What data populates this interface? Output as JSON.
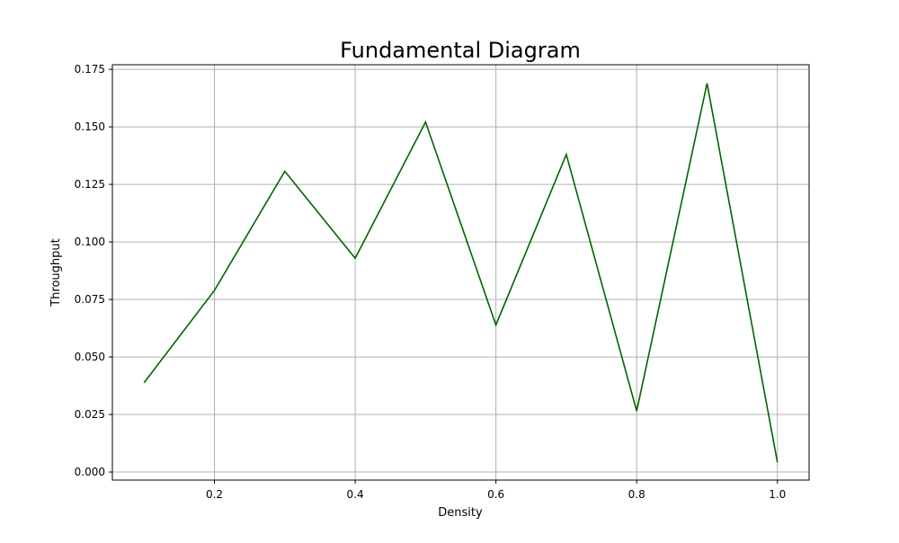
{
  "chart_data": {
    "type": "line",
    "title": "Fundamental Diagram",
    "xlabel": "Density",
    "ylabel": "Throughput",
    "x": [
      0.1,
      0.2,
      0.3,
      0.4,
      0.5,
      0.6,
      0.7,
      0.8,
      0.9,
      1.0
    ],
    "series": [
      {
        "values": [
          0.0388,
          0.0789,
          0.1307,
          0.0929,
          0.1521,
          0.0639,
          0.138,
          0.0265,
          0.1689,
          0.0042
        ],
        "color": "#006400"
      }
    ],
    "xlim": [
      0.055,
      1.045
    ],
    "ylim": [
      -0.0035,
      0.177
    ],
    "xticks": [
      0.2,
      0.4,
      0.6,
      0.8,
      1.0
    ],
    "xtick_labels": [
      "0.2",
      "0.4",
      "0.6",
      "0.8",
      "1.0"
    ],
    "yticks": [
      0.0,
      0.025,
      0.05,
      0.075,
      0.1,
      0.125,
      0.15,
      0.175
    ],
    "ytick_labels": [
      "0.000",
      "0.025",
      "0.050",
      "0.075",
      "0.100",
      "0.125",
      "0.150",
      "0.175"
    ],
    "grid": true,
    "legend": false
  }
}
